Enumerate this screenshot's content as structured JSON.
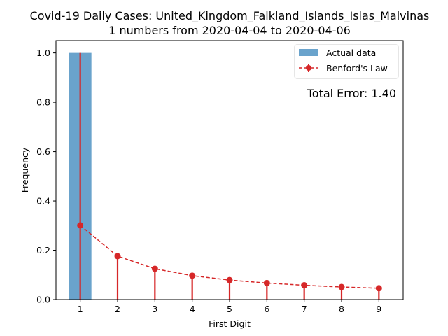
{
  "chart_data": {
    "type": "bar",
    "title_line1": "Covid-19 Daily Cases: United_Kingdom_Falkland_Islands_Islas_Malvinas",
    "title_line2": "1 numbers from 2020-04-04 to 2020-04-06",
    "xlabel": "First Digit",
    "ylabel": "Frequency",
    "categories": [
      "1",
      "2",
      "3",
      "4",
      "5",
      "6",
      "7",
      "8",
      "9"
    ],
    "x": [
      1,
      2,
      3,
      4,
      5,
      6,
      7,
      8,
      9
    ],
    "ylim": [
      0,
      1.05
    ],
    "xlim": [
      0.35,
      9.65
    ],
    "yticks": [
      "0.0",
      "0.2",
      "0.4",
      "0.6",
      "0.8",
      "1.0"
    ],
    "ytick_values": [
      0,
      0.2,
      0.4,
      0.6,
      0.8,
      1.0
    ],
    "series": [
      {
        "name": "Actual data",
        "kind": "bar",
        "color": "#6aa3cc",
        "values": [
          1.0,
          0,
          0,
          0,
          0,
          0,
          0,
          0,
          0
        ]
      },
      {
        "name": "Benford's Law",
        "kind": "line-marker-stem",
        "color": "#d62728",
        "values": [
          0.301,
          0.176,
          0.125,
          0.097,
          0.079,
          0.067,
          0.058,
          0.051,
          0.046
        ]
      }
    ],
    "annotation": "Total Error: 1.40",
    "annotation_color": "#d62728",
    "legend_position": "top-right",
    "grid": false
  }
}
